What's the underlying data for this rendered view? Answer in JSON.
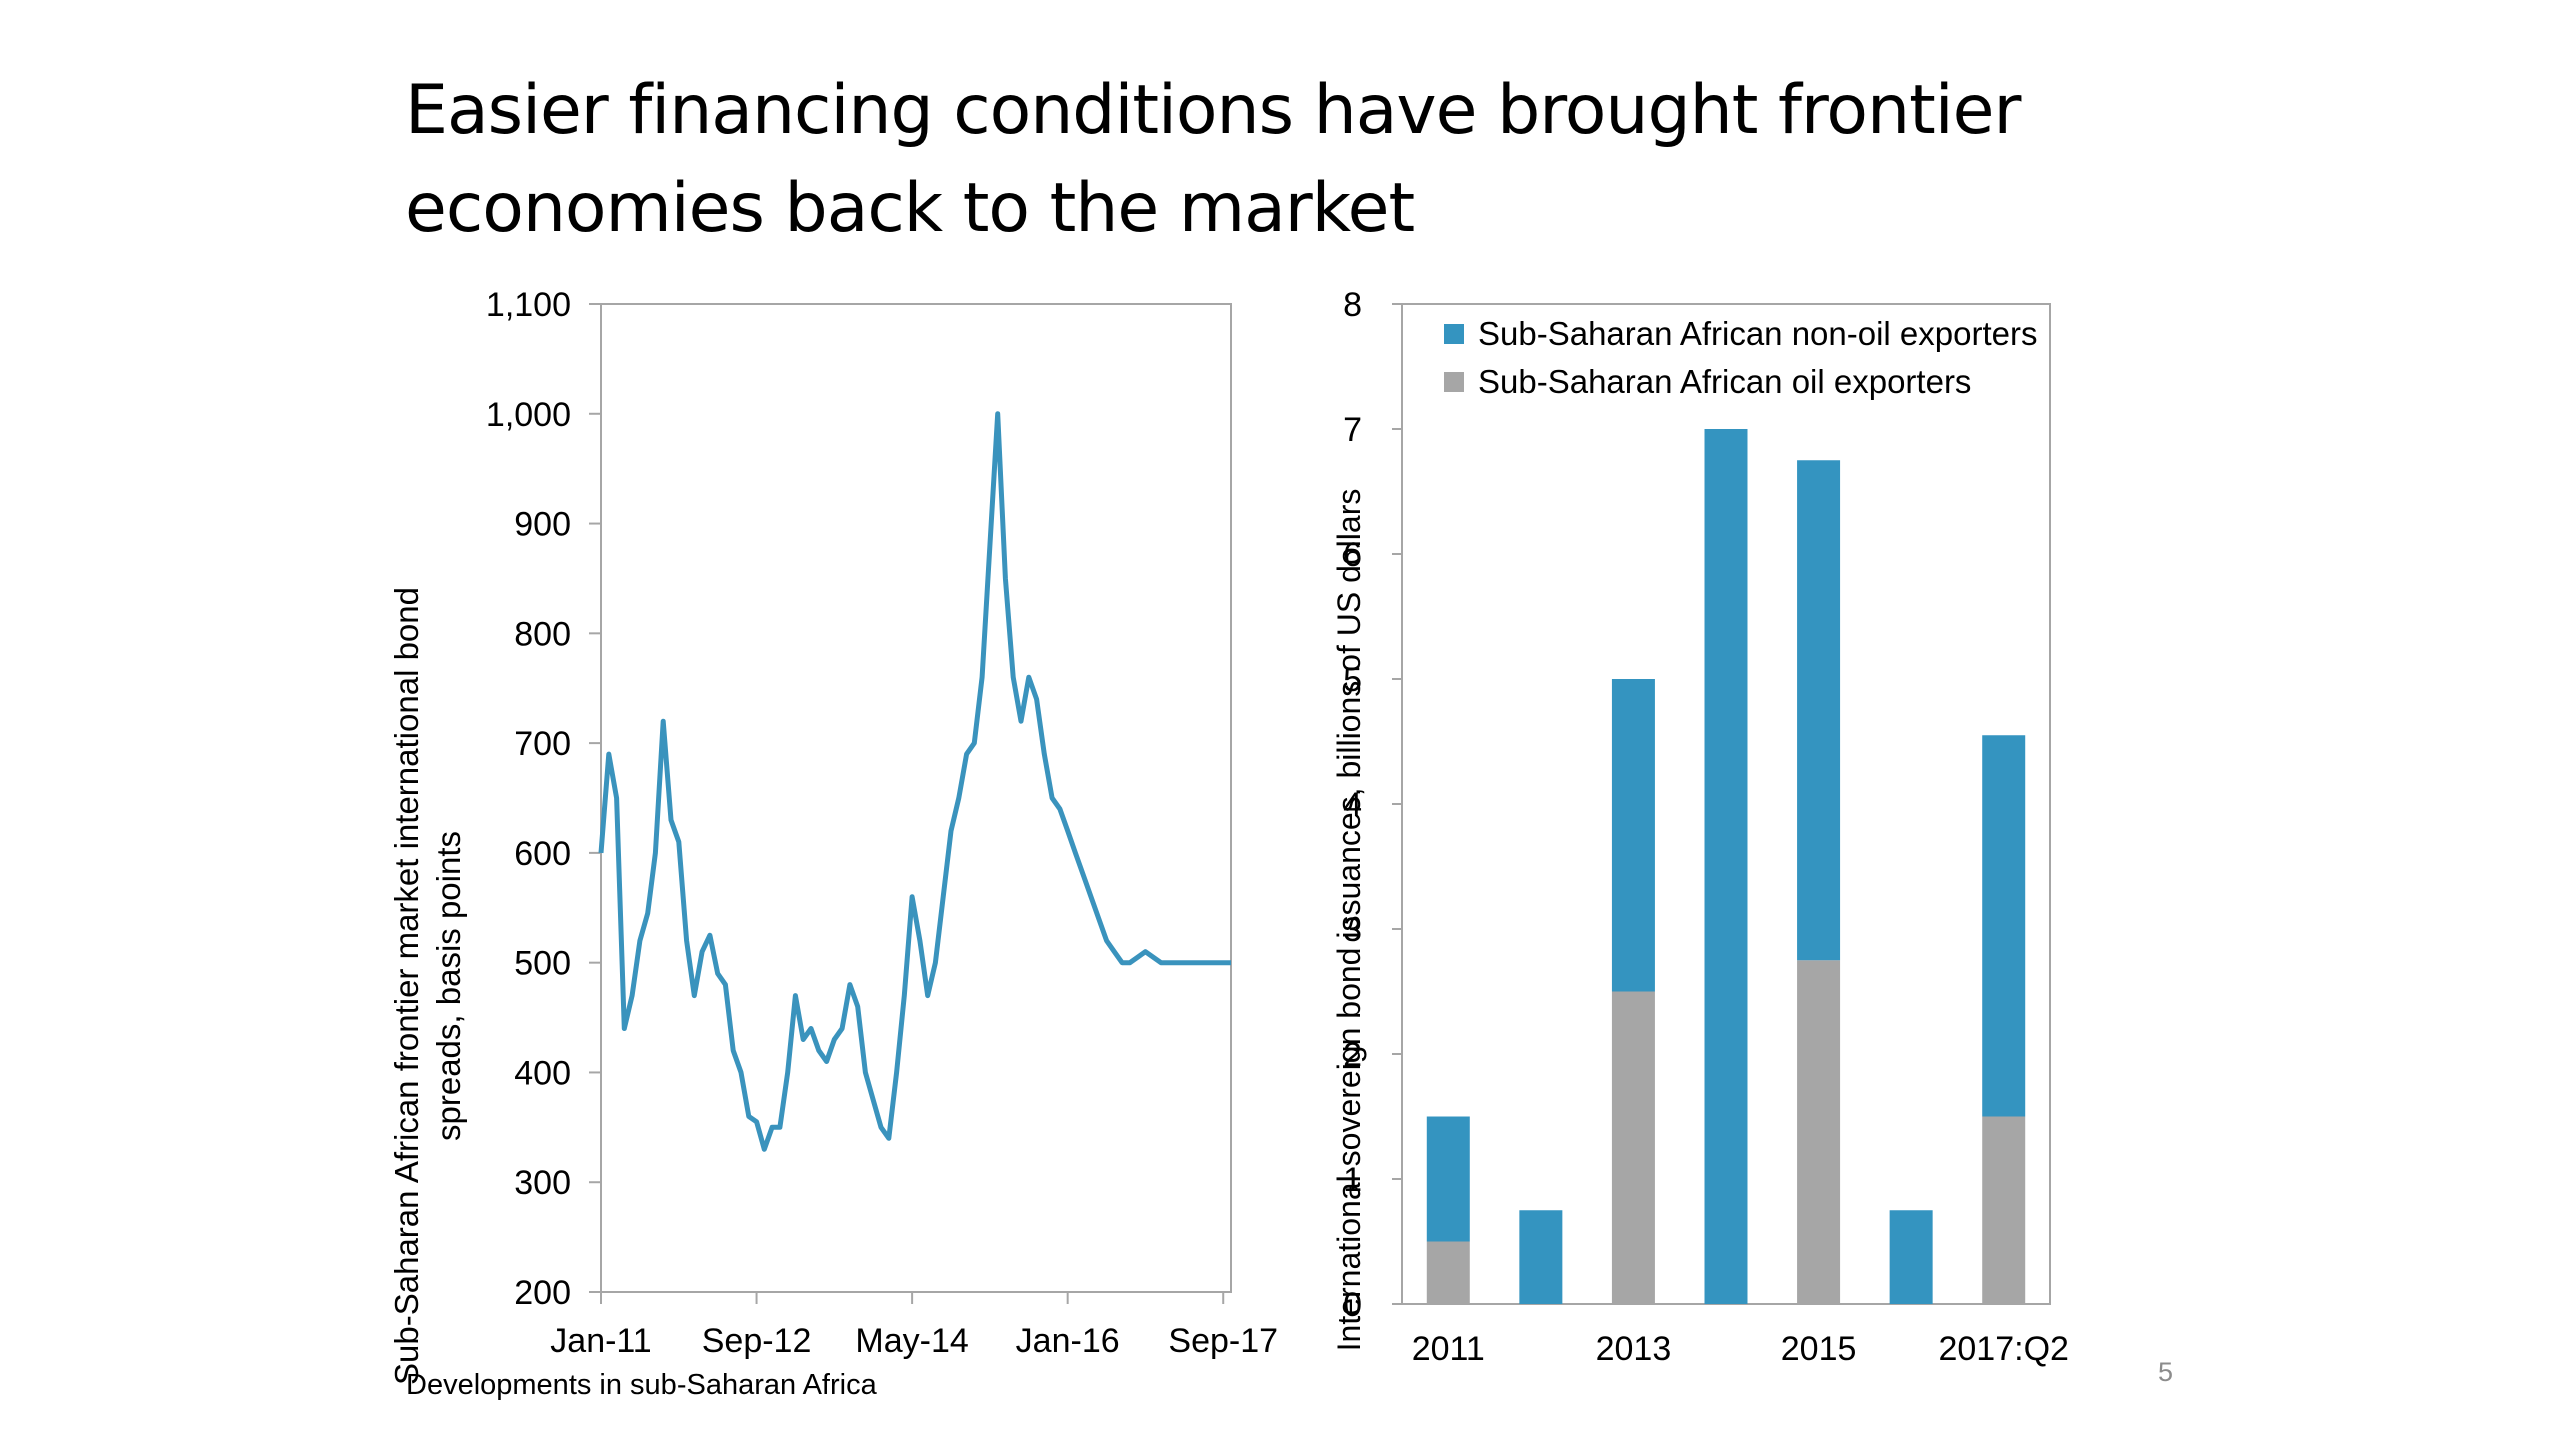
{
  "slide": {
    "title_line1": "Easier financing conditions have brought frontier",
    "title_line2": "economies back to the market",
    "footer": "Developments in sub-Saharan Africa",
    "page_number": "5"
  },
  "colors": {
    "line": "#3a93bd",
    "non_oil": "#3494c0",
    "oil": "#a6a6a6",
    "axis": "#a6a6a6"
  },
  "chart_data": [
    {
      "type": "line",
      "title": "",
      "ylabel_line1": "Sub-Saharan African frontier market international bond",
      "ylabel_line2": "spreads, basis points",
      "ylim": [
        200,
        1100
      ],
      "yticks": [
        200,
        300,
        400,
        500,
        600,
        700,
        800,
        900,
        1000,
        1100
      ],
      "ytick_labels": [
        "200",
        "300",
        "400",
        "500",
        "600",
        "700",
        "800",
        "900",
        "1,000",
        "1,100"
      ],
      "xlim": [
        "2011-01",
        "2017-10"
      ],
      "xtick_labels": [
        "Jan-11",
        "Sep-12",
        "May-14",
        "Jan-16",
        "Sep-17"
      ],
      "grid": false,
      "series": [
        {
          "x": [
            "2011-01",
            "2011-02",
            "2011-03",
            "2011-04",
            "2011-05",
            "2011-06",
            "2011-07",
            "2011-08",
            "2011-09",
            "2011-10",
            "2011-11",
            "2011-12",
            "2012-01",
            "2012-02",
            "2012-03",
            "2012-04",
            "2012-05",
            "2012-06",
            "2012-07",
            "2012-08",
            "2012-09",
            "2012-10",
            "2012-11",
            "2012-12",
            "2013-01",
            "2013-02",
            "2013-03",
            "2013-04",
            "2013-05",
            "2013-06",
            "2013-07",
            "2013-08",
            "2013-09",
            "2013-10",
            "2013-11",
            "2013-12",
            "2014-01",
            "2014-02",
            "2014-03",
            "2014-04",
            "2014-05",
            "2014-06",
            "2014-07",
            "2014-08",
            "2014-09",
            "2014-10",
            "2014-11",
            "2014-12",
            "2015-01",
            "2015-02",
            "2015-03",
            "2015-04",
            "2015-05",
            "2015-06",
            "2015-07",
            "2015-08",
            "2015-09",
            "2015-10",
            "2015-11",
            "2015-12",
            "2016-01",
            "2016-02",
            "2016-03",
            "2016-04",
            "2016-05",
            "2016-06",
            "2016-07",
            "2016-08",
            "2016-09",
            "2016-10",
            "2016-11",
            "2016-12",
            "2017-01",
            "2017-02",
            "2017-03",
            "2017-04",
            "2017-05",
            "2017-06",
            "2017-07",
            "2017-08",
            "2017-09",
            "2017-10"
          ],
          "values": [
            600,
            690,
            650,
            440,
            470,
            520,
            545,
            600,
            720,
            630,
            610,
            520,
            470,
            510,
            525,
            490,
            480,
            420,
            400,
            360,
            355,
            330,
            350,
            350,
            400,
            470,
            430,
            440,
            420,
            410,
            430,
            440,
            480,
            460,
            400,
            375,
            350,
            340,
            400,
            470,
            560,
            520,
            470,
            500,
            560,
            620,
            650,
            690,
            700,
            760,
            880,
            1000,
            850,
            760,
            720,
            760,
            740,
            690,
            650,
            640,
            620,
            600,
            580,
            560,
            540,
            520,
            510,
            500,
            500,
            505,
            510,
            505,
            500,
            500,
            500,
            500,
            500,
            500,
            500,
            500,
            500,
            500
          ]
        }
      ]
    },
    {
      "type": "bar",
      "stacked": true,
      "title": "",
      "ylabel": "International sovereign bond issuances, billions of US dollars",
      "ylim": [
        0,
        8
      ],
      "yticks": [
        0,
        1,
        2,
        3,
        4,
        5,
        6,
        7,
        8
      ],
      "categories": [
        "2011",
        "2012",
        "2013",
        "2014",
        "2015",
        "2016",
        "2017:Q2"
      ],
      "xtick_labels": [
        "2011",
        "2013",
        "2015",
        "2017:Q2"
      ],
      "legend_position": "top-left",
      "grid": false,
      "series": [
        {
          "name": "Sub-Saharan African oil exporters",
          "values": [
            0.5,
            0,
            2.5,
            0,
            2.75,
            0,
            1.5
          ]
        },
        {
          "name": "Sub-Saharan African non-oil exporters",
          "values": [
            1.0,
            0.75,
            2.5,
            7.0,
            4.0,
            0.75,
            3.05
          ]
        }
      ]
    }
  ]
}
